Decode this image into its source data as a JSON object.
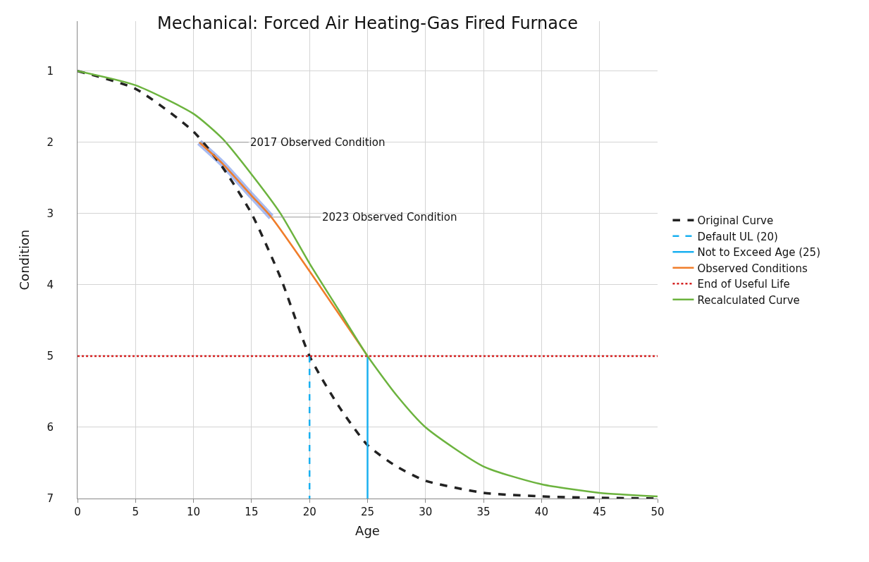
{
  "chart_data": {
    "type": "line",
    "title": "Mechanical: Forced Air Heating-Gas Fired Furnace",
    "xlabel": "Age",
    "ylabel": "Condition",
    "xlim": [
      0,
      50
    ],
    "xticks": [
      0,
      5,
      10,
      15,
      20,
      25,
      30,
      35,
      40,
      45,
      50
    ],
    "ylim": [
      7,
      0.3
    ],
    "yticks": [
      1,
      2,
      3,
      4,
      5,
      6,
      7
    ],
    "grid": true,
    "legend": "right",
    "marker": "none",
    "series": [
      {
        "color": "#6f8fe8",
        "x": [
          10.5,
          12.5,
          15,
          16.7
        ],
        "values": [
          2.0,
          2.3,
          2.75,
          3.05
        ]
      },
      {
        "name": "Original Curve",
        "color": "#222222",
        "line_style": "dashed",
        "x": [
          0,
          5,
          10,
          12.5,
          15,
          17.5,
          20,
          22.5,
          25,
          27.5,
          30,
          35,
          40,
          45,
          50
        ],
        "values": [
          1.0,
          1.25,
          1.85,
          2.35,
          3.0,
          3.9,
          5.0,
          5.7,
          6.25,
          6.55,
          6.75,
          6.92,
          6.97,
          6.99,
          7.0
        ]
      },
      {
        "name": "Default UL (20)",
        "color": "#1ab0f0",
        "line_style": "dashed",
        "x": [
          20,
          20
        ],
        "values": [
          5,
          7
        ]
      },
      {
        "name": "Not to Exceed Age (25)",
        "color": "#1ab0f0",
        "line_style": "solid",
        "x": [
          25,
          25
        ],
        "values": [
          5,
          7
        ]
      },
      {
        "name": "Observed Conditions",
        "color": "#f07d2a",
        "line_style": "solid",
        "x": [
          10.5,
          12.5,
          15,
          16.7,
          25
        ],
        "values": [
          2.0,
          2.3,
          2.75,
          3.05,
          5.0
        ]
      },
      {
        "name": "End of Useful Life",
        "color": "#d42020",
        "line_style": "dotted",
        "x": [
          0,
          50
        ],
        "values": [
          5,
          5
        ]
      },
      {
        "name": "Recalculated Curve",
        "color": "#6cb33e",
        "line_style": "solid",
        "x": [
          0,
          5,
          10,
          12.5,
          15,
          17.5,
          20,
          22.5,
          25,
          27.5,
          30,
          35,
          40,
          45,
          50
        ],
        "values": [
          1.0,
          1.2,
          1.6,
          1.95,
          2.45,
          3.0,
          3.7,
          4.35,
          5.0,
          5.55,
          6.0,
          6.55,
          6.8,
          6.92,
          6.97
        ]
      }
    ],
    "annotations": [
      {
        "text": "2017 Observed Condition",
        "x": 10.5,
        "y": 2.0
      },
      {
        "text": "2023 Observed Condition",
        "x": 16.7,
        "y": 3.05
      }
    ]
  }
}
